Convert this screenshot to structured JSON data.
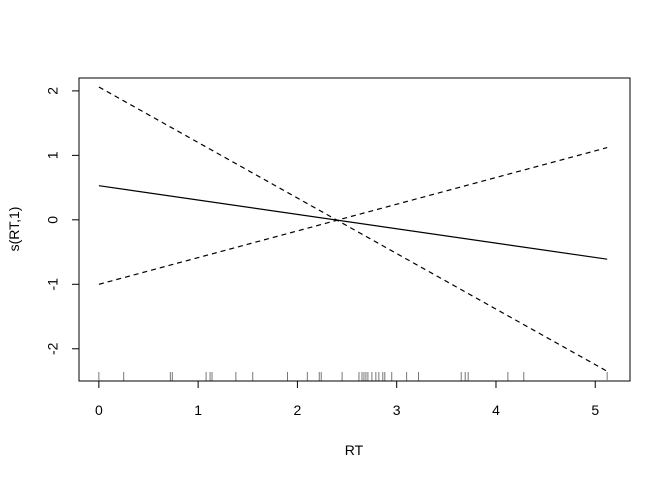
{
  "chart_data": {
    "type": "line",
    "title": "",
    "xlabel": "RT",
    "ylabel": "s(RT,1)",
    "xlim": [
      -0.2,
      5.35
    ],
    "ylim": [
      -2.5,
      2.2
    ],
    "x_ticks": [
      0,
      1,
      2,
      3,
      4,
      5
    ],
    "x_tick_labels": [
      "0",
      "1",
      "2",
      "3",
      "4",
      "5"
    ],
    "y_ticks": [
      -2,
      -1,
      0,
      1,
      2
    ],
    "y_tick_labels": [
      "-2",
      "-1",
      "0",
      "1",
      "2"
    ],
    "grid": false,
    "series": [
      {
        "style": "solid",
        "x": [
          0,
          5.12
        ],
        "y": [
          0.53,
          -0.61
        ]
      },
      {
        "style": "dashed",
        "x": [
          0,
          5.12
        ],
        "y": [
          2.06,
          -2.35
        ]
      },
      {
        "style": "dashed",
        "x": [
          0,
          5.12
        ],
        "y": [
          -1.0,
          1.12
        ]
      }
    ],
    "rug": [
      0.0,
      0.25,
      0.72,
      0.74,
      1.08,
      1.12,
      1.14,
      1.38,
      1.55,
      1.9,
      2.1,
      2.22,
      2.24,
      2.45,
      2.62,
      2.65,
      2.67,
      2.69,
      2.71,
      2.75,
      2.79,
      2.82,
      2.86,
      2.88,
      2.95,
      3.1,
      3.22,
      3.65,
      3.69,
      3.72,
      4.12,
      4.28,
      5.12
    ]
  }
}
